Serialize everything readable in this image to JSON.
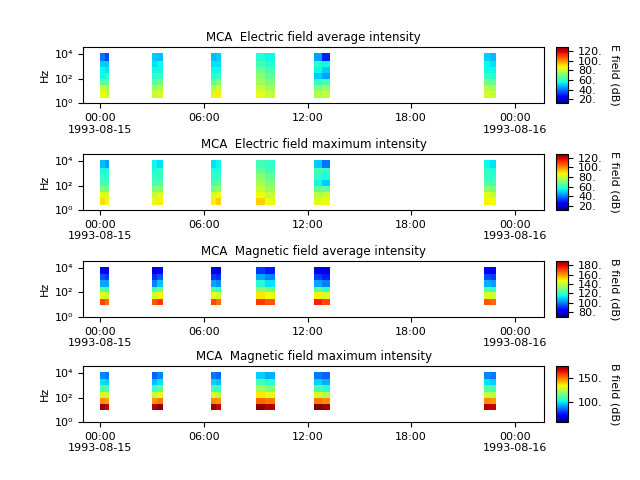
{
  "chart_data": [
    {
      "type": "heatmap",
      "title": "MCA  Electric field average intensity",
      "y_label": "Hz",
      "log": "y",
      "xlim": [
        -1.0,
        25.7
      ],
      "xticks": [
        {
          "value": 0,
          "label": "00:00\n1993-08-15"
        },
        {
          "value": 6,
          "label": "06:00"
        },
        {
          "value": 12,
          "label": "12:00"
        },
        {
          "value": 18,
          "label": "18:00"
        },
        {
          "value": 24,
          "label": "00:00\n1993-08-16"
        }
      ],
      "ylim": [
        1,
        40000
      ],
      "yticks": [
        {
          "value": 1,
          "label": "10⁰"
        },
        {
          "value": 100,
          "label": "10²"
        },
        {
          "value": 10000,
          "label": "10⁴"
        }
      ],
      "y_edges": [
        2.5,
        10,
        30,
        100,
        300,
        1000,
        3000,
        12000
      ],
      "passes": [
        {
          "x": [
            0.0,
            0.25,
            0.5
          ],
          "values": [
            [
              85,
              80,
              65,
              55,
              55,
              50,
              40
            ],
            [
              80,
              78,
              65,
              58,
              52,
              50,
              35
            ]
          ]
        },
        {
          "x": [
            3.0,
            3.3,
            3.6
          ],
          "values": [
            [
              80,
              75,
              65,
              58,
              55,
              52,
              50
            ],
            [
              82,
              78,
              68,
              60,
              55,
              55,
              48
            ]
          ]
        },
        {
          "x": [
            6.4,
            6.7,
            7.0
          ],
          "values": [
            [
              82,
              78,
              66,
              58,
              55,
              52,
              48
            ],
            [
              88,
              82,
              70,
              60,
              55,
              52,
              50
            ]
          ]
        },
        {
          "x": [
            9.0,
            9.55,
            10.1
          ],
          "values": [
            [
              85,
              80,
              75,
              72,
              68,
              62,
              58
            ],
            [
              80,
              75,
              70,
              66,
              62,
              58,
              55
            ]
          ]
        },
        {
          "x": [
            12.4,
            12.85,
            13.3
          ],
          "values": [
            [
              78,
              72,
              60,
              50,
              55,
              58,
              45
            ],
            [
              80,
              74,
              62,
              45,
              50,
              55,
              30
            ]
          ]
        },
        {
          "x": [
            22.2,
            22.55,
            22.9
          ],
          "values": [
            [
              82,
              78,
              68,
              60,
              55,
              55,
              50
            ],
            [
              80,
              76,
              66,
              58,
              55,
              52,
              48
            ]
          ]
        }
      ],
      "colorbar": {
        "label": "E field (dB)",
        "range": [
          12,
          128
        ],
        "ticks": [
          {
            "value": 20,
            "label": "20."
          },
          {
            "value": 40,
            "label": "40."
          },
          {
            "value": 60,
            "label": "60."
          },
          {
            "value": 80,
            "label": "80."
          },
          {
            "value": 100,
            "label": "100."
          },
          {
            "value": 120,
            "label": "120."
          }
        ]
      }
    },
    {
      "type": "heatmap",
      "title": "MCA  Electric field maximum intensity",
      "y_label": "Hz",
      "log": "y",
      "xlim": [
        -1.0,
        25.7
      ],
      "xticks": [
        {
          "value": 0,
          "label": "00:00\n1993-08-15"
        },
        {
          "value": 6,
          "label": "06:00"
        },
        {
          "value": 12,
          "label": "12:00"
        },
        {
          "value": 18,
          "label": "18:00"
        },
        {
          "value": 24,
          "label": "00:00\n1993-08-16"
        }
      ],
      "ylim": [
        1,
        40000
      ],
      "yticks": [
        {
          "value": 1,
          "label": "10⁰"
        },
        {
          "value": 100,
          "label": "10²"
        },
        {
          "value": 10000,
          "label": "10⁴"
        }
      ],
      "y_edges": [
        2.5,
        10,
        30,
        100,
        300,
        1000,
        3000,
        12000
      ],
      "passes": [
        {
          "x": [
            0.0,
            0.25,
            0.5
          ],
          "values": [
            [
              90,
              85,
              70,
              62,
              60,
              55,
              48
            ],
            [
              86,
              82,
              70,
              62,
              58,
              56,
              45
            ]
          ]
        },
        {
          "x": [
            3.0,
            3.3,
            3.6
          ],
          "values": [
            [
              85,
              80,
              70,
              62,
              60,
              56,
              55
            ],
            [
              88,
              84,
              72,
              64,
              60,
              60,
              52
            ]
          ]
        },
        {
          "x": [
            6.4,
            6.7,
            7.0
          ],
          "values": [
            [
              88,
              82,
              70,
              62,
              60,
              56,
              52
            ],
            [
              92,
              86,
              74,
              65,
              60,
              56,
              55
            ]
          ]
        },
        {
          "x": [
            9.0,
            9.55,
            10.1
          ],
          "values": [
            [
              92,
              86,
              80,
              76,
              72,
              66,
              62
            ],
            [
              86,
              80,
              75,
              70,
              66,
              62,
              60
            ]
          ]
        },
        {
          "x": [
            12.4,
            12.85,
            13.3
          ],
          "values": [
            [
              84,
              78,
              66,
              55,
              60,
              62,
              50
            ],
            [
              86,
              80,
              66,
              50,
              56,
              60,
              40
            ]
          ]
        },
        {
          "x": [
            22.2,
            22.55,
            22.9
          ],
          "values": [
            [
              88,
              84,
              72,
              65,
              60,
              60,
              55
            ],
            [
              86,
              80,
              70,
              62,
              60,
              56,
              52
            ]
          ]
        }
      ],
      "colorbar": {
        "label": "E field (dB)",
        "range": [
          12,
          128
        ],
        "ticks": [
          {
            "value": 20,
            "label": "20."
          },
          {
            "value": 40,
            "label": "40."
          },
          {
            "value": 60,
            "label": "60."
          },
          {
            "value": 80,
            "label": "80."
          },
          {
            "value": 100,
            "label": "100."
          },
          {
            "value": 120,
            "label": "120."
          }
        ]
      }
    },
    {
      "type": "heatmap",
      "title": "MCA  Magnetic field average intensity",
      "y_label": "Hz",
      "log": "y",
      "xlim": [
        -1.0,
        25.7
      ],
      "xticks": [
        {
          "value": 0,
          "label": "00:00\n1993-08-15"
        },
        {
          "value": 6,
          "label": "06:00"
        },
        {
          "value": 12,
          "label": "12:00"
        },
        {
          "value": 18,
          "label": "18:00"
        },
        {
          "value": 24,
          "label": "00:00\n1993-08-16"
        }
      ],
      "ylim": [
        1,
        40000
      ],
      "yticks": [
        {
          "value": 1,
          "label": "10⁰"
        },
        {
          "value": 100,
          "label": "10²"
        },
        {
          "value": 10000,
          "label": "10⁴"
        }
      ],
      "y_edges": [
        10,
        30,
        100,
        300,
        1000,
        3000,
        12000
      ],
      "passes": [
        {
          "x": [
            0.0,
            0.25,
            0.5
          ],
          "values": [
            [
              170,
              145,
              125,
              105,
              95,
              85
            ],
            [
              165,
              140,
              122,
              105,
              92,
              82
            ]
          ]
        },
        {
          "x": [
            3.0,
            3.3,
            3.6
          ],
          "values": [
            [
              168,
              142,
              122,
              100,
              90,
              80
            ],
            [
              172,
              148,
              128,
              108,
              95,
              85
            ]
          ]
        },
        {
          "x": [
            6.4,
            6.7,
            7.0
          ],
          "values": [
            [
              170,
              145,
              125,
              105,
              92,
              82
            ],
            [
              165,
              142,
              120,
              102,
              90,
              80
            ]
          ]
        },
        {
          "x": [
            9.0,
            9.55,
            10.1
          ],
          "values": [
            [
              172,
              150,
              132,
              118,
              105,
              92
            ],
            [
              168,
              146,
              128,
              112,
              100,
              88
            ]
          ]
        },
        {
          "x": [
            12.4,
            12.85,
            13.3
          ],
          "values": [
            [
              175,
              148,
              125,
              105,
              92,
              82
            ],
            [
              170,
              144,
              120,
              100,
              88,
              80
            ]
          ]
        },
        {
          "x": [
            22.2,
            22.55,
            22.9
          ],
          "values": [
            [
              168,
              144,
              124,
              106,
              94,
              84
            ],
            [
              166,
              142,
              120,
              104,
              92,
              82
            ]
          ]
        }
      ],
      "colorbar": {
        "label": "B field (dB)",
        "range": [
          70,
          190
        ],
        "ticks": [
          {
            "value": 80,
            "label": "80."
          },
          {
            "value": 100,
            "label": "100."
          },
          {
            "value": 120,
            "label": "120."
          },
          {
            "value": 140,
            "label": "140."
          },
          {
            "value": 160,
            "label": "160."
          },
          {
            "value": 180,
            "label": "180."
          }
        ]
      }
    },
    {
      "type": "heatmap",
      "title": "MCA  Magnetic field maximum intensity",
      "y_label": "Hz",
      "log": "y",
      "xlim": [
        -1.0,
        25.7
      ],
      "xticks": [
        {
          "value": 0,
          "label": "00:00\n1993-08-15"
        },
        {
          "value": 6,
          "label": "06:00"
        },
        {
          "value": 12,
          "label": "12:00"
        },
        {
          "value": 18,
          "label": "18:00"
        },
        {
          "value": 24,
          "label": "00:00\n1993-08-16"
        }
      ],
      "ylim": [
        1,
        40000
      ],
      "yticks": [
        {
          "value": 1,
          "label": "10⁰"
        },
        {
          "value": 100,
          "label": "10²"
        },
        {
          "value": 10000,
          "label": "10⁴"
        }
      ],
      "y_edges": [
        10,
        30,
        100,
        300,
        1000,
        3000,
        12000
      ],
      "passes": [
        {
          "x": [
            0.0,
            0.25,
            0.5
          ],
          "values": [
            [
              172,
              148,
              130,
              112,
              100,
              90
            ],
            [
              168,
              145,
              128,
              110,
              98,
              88
            ]
          ]
        },
        {
          "x": [
            3.0,
            3.3,
            3.6
          ],
          "values": [
            [
              170,
              146,
              128,
              108,
              96,
              86
            ],
            [
              174,
              150,
              132,
              114,
              100,
              90
            ]
          ]
        },
        {
          "x": [
            6.4,
            6.7,
            7.0
          ],
          "values": [
            [
              172,
              148,
              130,
              110,
              98,
              88
            ],
            [
              168,
              146,
              126,
              108,
              96,
              86
            ]
          ]
        },
        {
          "x": [
            9.0,
            9.55,
            10.1
          ],
          "values": [
            [
              174,
              152,
              136,
              122,
              110,
              98
            ],
            [
              170,
              150,
              132,
              118,
              106,
              94
            ]
          ]
        },
        {
          "x": [
            12.4,
            12.85,
            13.3
          ],
          "values": [
            [
              175,
              150,
              130,
              110,
              98,
              88
            ],
            [
              172,
              148,
              126,
              106,
              94,
              86
            ]
          ]
        },
        {
          "x": [
            22.2,
            22.55,
            22.9
          ],
          "values": [
            [
              170,
              148,
              128,
              112,
              100,
              90
            ],
            [
              168,
              146,
              126,
              110,
              98,
              88
            ]
          ]
        }
      ],
      "colorbar": {
        "label": "B field (dB)",
        "range": [
          60,
          175
        ],
        "ticks": [
          {
            "value": 100,
            "label": "100."
          },
          {
            "value": 150,
            "label": "150."
          }
        ]
      }
    }
  ]
}
